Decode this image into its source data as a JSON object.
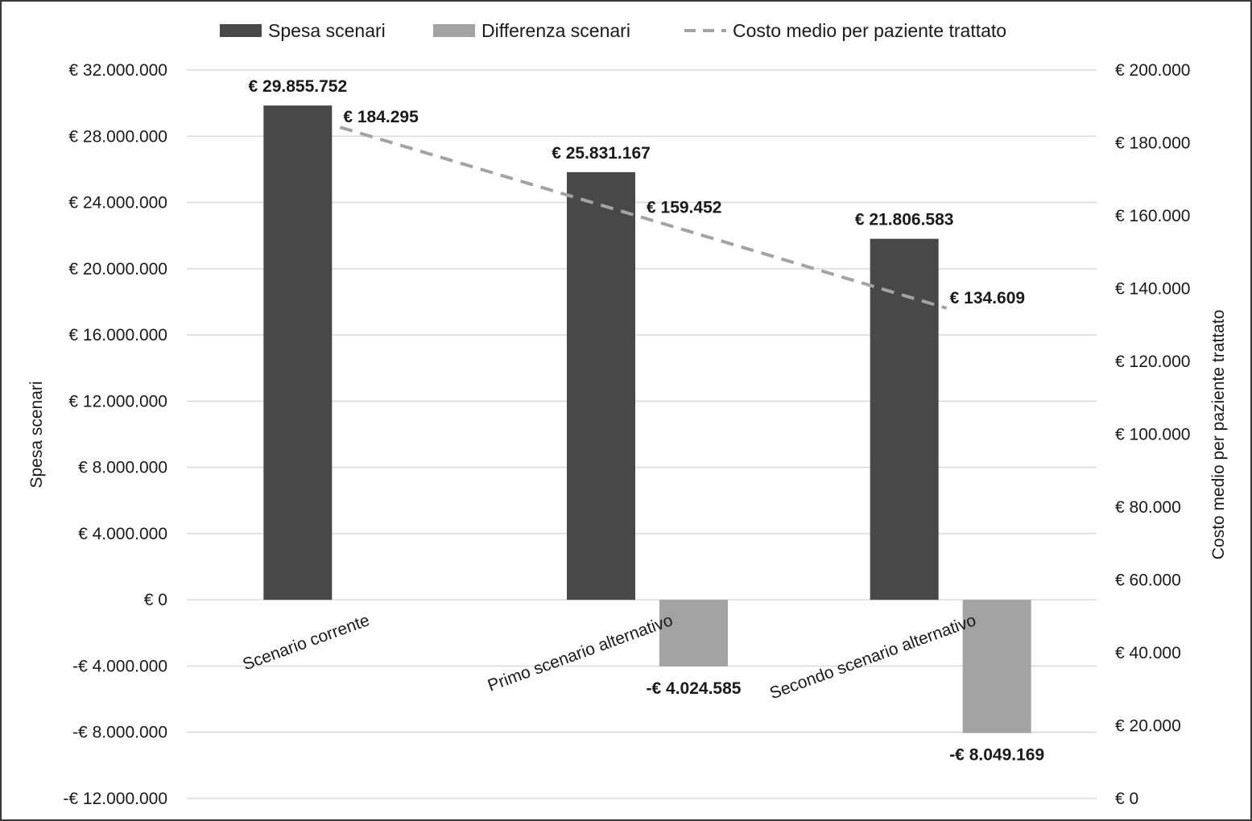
{
  "chart_data": {
    "type": "bar",
    "categories": [
      "Scenario corrente",
      "Primo scenario alternativo",
      "Secondo scenario alternativo"
    ],
    "series": [
      {
        "name": "Spesa scenari",
        "axis": "left",
        "color": "#484848",
        "values": [
          29855752,
          25831167,
          21806583
        ],
        "labels": [
          "€ 29.855.752",
          "€ 25.831.167",
          "€ 21.806.583"
        ]
      },
      {
        "name": "Differenza scenari",
        "axis": "left",
        "color": "#a3a3a3",
        "values": [
          null,
          -4024585,
          -8049169
        ],
        "labels": [
          "",
          "-€ 4.024.585",
          "-€ 8.049.169"
        ]
      },
      {
        "name": "Costo medio per paziente trattato",
        "axis": "right",
        "kind": "line",
        "style": "dashed",
        "color": "#a3a3a3",
        "values": [
          184295,
          159452,
          134609
        ],
        "labels": [
          "€ 184.295",
          "€ 159.452",
          "€ 134.609"
        ]
      }
    ],
    "ylabel": "Spesa scenari",
    "y2label": "Costo medio per paziente trattato",
    "ylim": [
      -12000000,
      32000000
    ],
    "y2lim": [
      0,
      200000
    ],
    "yticks": [
      -12000000,
      -8000000,
      -4000000,
      0,
      4000000,
      8000000,
      12000000,
      16000000,
      20000000,
      24000000,
      28000000,
      32000000
    ],
    "yticklabels": [
      "-€ 12.000.000",
      "-€ 8.000.000",
      "-€ 4.000.000",
      "€ 0",
      "€ 4.000.000",
      "€ 8.000.000",
      "€ 12.000.000",
      "€ 16.000.000",
      "€ 20.000.000",
      "€ 24.000.000",
      "€ 28.000.000",
      "€ 32.000.000"
    ],
    "y2ticks": [
      0,
      20000,
      40000,
      60000,
      80000,
      100000,
      120000,
      140000,
      160000,
      180000,
      200000
    ],
    "y2ticklabels": [
      "€ 0",
      "€ 20.000",
      "€ 40.000",
      "€ 60.000",
      "€ 80.000",
      "€ 100.000",
      "€ 120.000",
      "€ 140.000",
      "€ 160.000",
      "€ 180.000",
      "€ 200.000"
    ],
    "grid": true,
    "legend": "top-center"
  }
}
